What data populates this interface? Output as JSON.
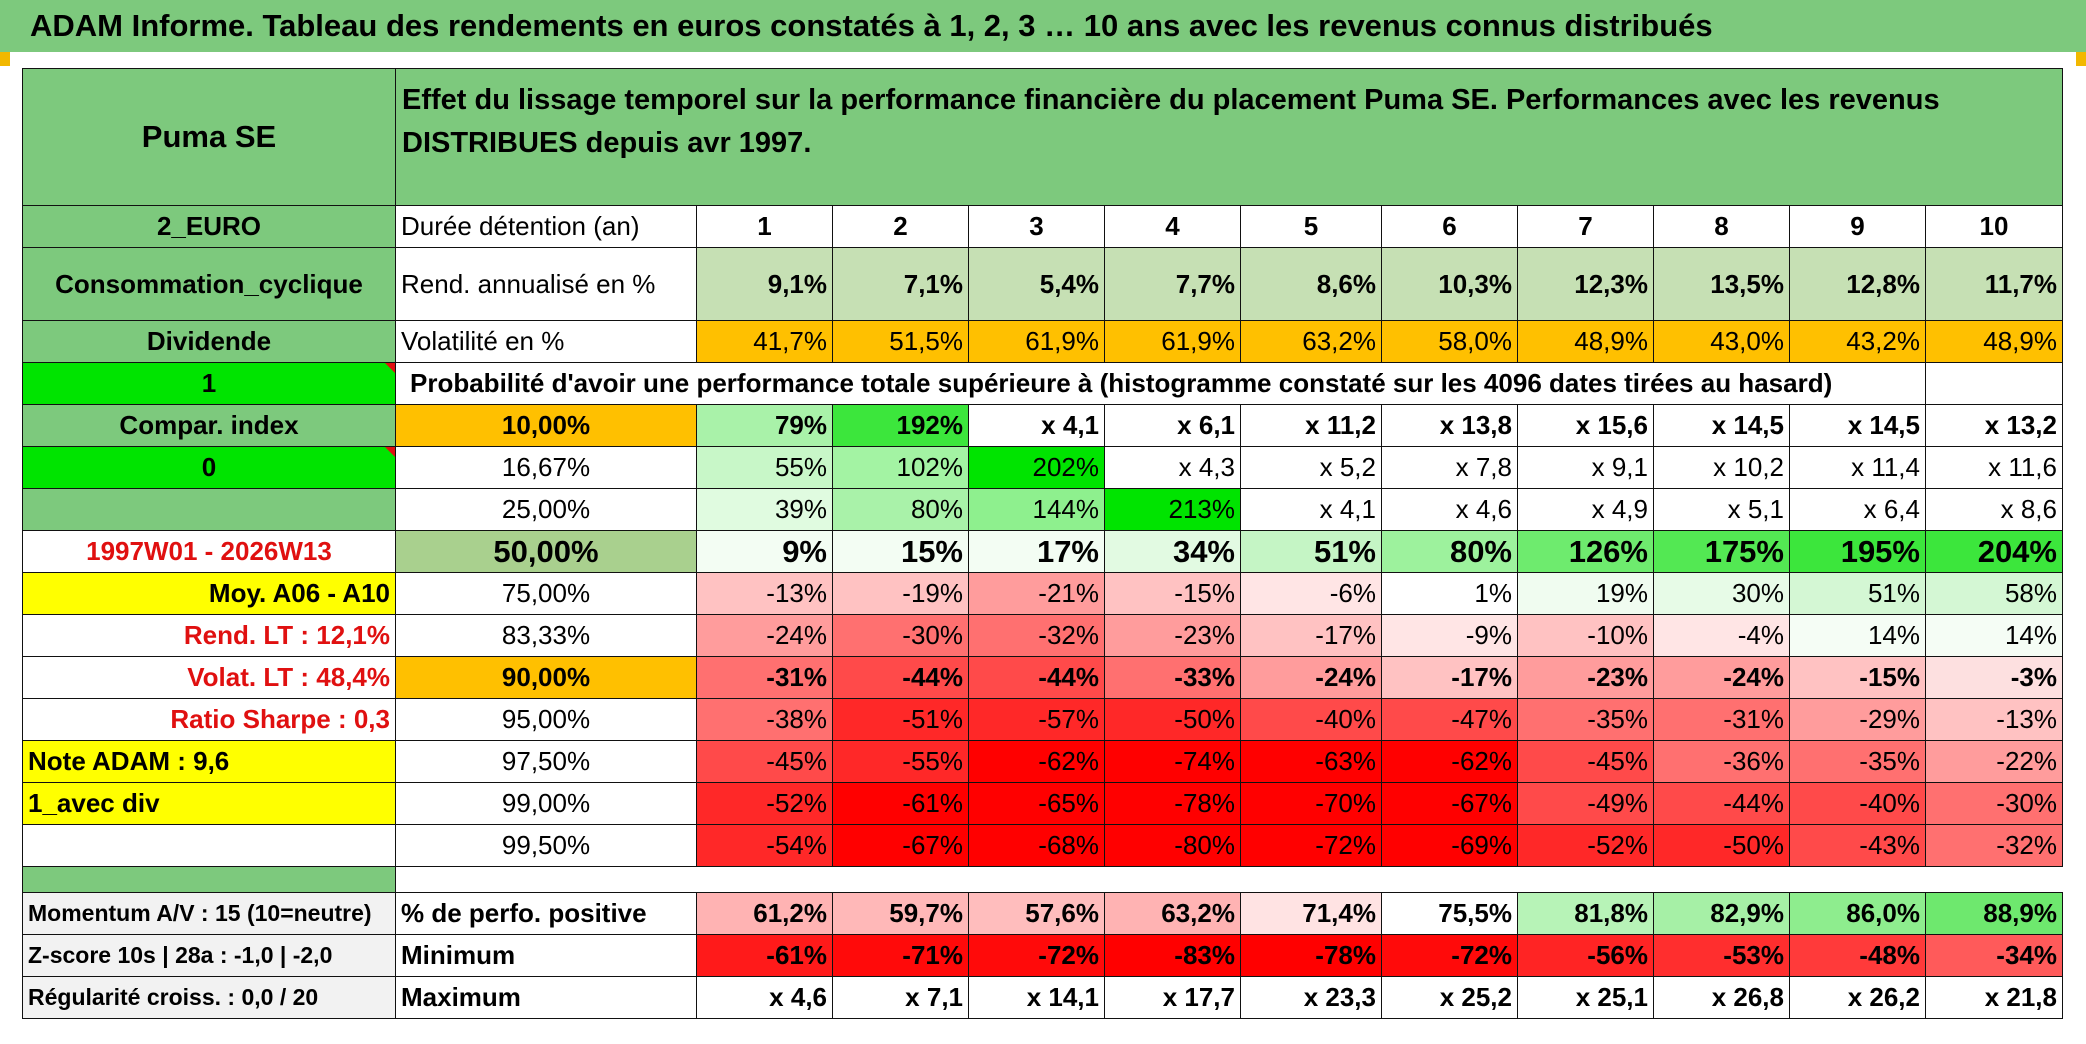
{
  "title": "ADAM Informe. Tableau des rendements en euros constatés à 1, 2, 3 … 10 ans avec les revenus connus distribués",
  "left_labels": {
    "company": "Puma SE",
    "currency": "2_EURO",
    "sector": "Consommation_cyclique",
    "dividend": "Dividende",
    "dividend_val": "1",
    "compar_index": "Compar. index",
    "compar_val": "0",
    "period": "1997W01 - 2026W13",
    "moy": "Moy. A06 - A10",
    "rend_lt": "Rend. LT :    12,1%",
    "volat_lt": "Volat. LT :    48,4%",
    "sharpe": "Ratio Sharpe :    0,3",
    "note": "Note ADAM : 9,6",
    "avec_div": "1_avec div",
    "momentum": "Momentum A/V : 15 (10=neutre)",
    "zscore": "Z-score 10s | 28a : -1,0 | -2,0",
    "regularite": "Régularité croiss. : 0,0 / 20"
  },
  "header": "Effet du lissage temporel sur la performance financière du placement Puma SE. Performances avec les revenus DISTRIBUES depuis avr 1997.",
  "duration_label": "Durée détention (an)",
  "years": [
    "1",
    "2",
    "3",
    "4",
    "5",
    "6",
    "7",
    "8",
    "9",
    "10"
  ],
  "rend_label": "Rend. annualisé en %",
  "rend": [
    "9,1%",
    "7,1%",
    "5,4%",
    "7,7%",
    "8,6%",
    "10,3%",
    "12,3%",
    "13,5%",
    "12,8%",
    "11,7%"
  ],
  "vol_label": "Volatilité en %",
  "vol": [
    "41,7%",
    "51,5%",
    "61,9%",
    "61,9%",
    "63,2%",
    "58,0%",
    "48,9%",
    "43,0%",
    "43,2%",
    "48,9%"
  ],
  "prob_label": "Probabilité d'avoir une performance totale supérieure à (histogramme constaté sur les 4096 dates tirées au hasard)",
  "quantiles": [
    {
      "p": "10,00%",
      "values": [
        "79%",
        "192%",
        "x 4,1",
        "x 6,1",
        "x 11,2",
        "x 13,8",
        "x 15,6",
        "x 14,5",
        "x 14,5",
        "x 13,2"
      ]
    },
    {
      "p": "16,67%",
      "values": [
        "55%",
        "102%",
        "202%",
        "x 4,3",
        "x 5,2",
        "x 7,8",
        "x 9,1",
        "x 10,2",
        "x 11,4",
        "x 11,6"
      ]
    },
    {
      "p": "25,00%",
      "values": [
        "39%",
        "80%",
        "144%",
        "213%",
        "x 4,1",
        "x 4,6",
        "x 4,9",
        "x 5,1",
        "x 6,4",
        "x 8,6"
      ]
    },
    {
      "p": "50,00%",
      "values": [
        "9%",
        "15%",
        "17%",
        "34%",
        "51%",
        "80%",
        "126%",
        "175%",
        "195%",
        "204%"
      ]
    },
    {
      "p": "75,00%",
      "values": [
        "-13%",
        "-19%",
        "-21%",
        "-15%",
        "-6%",
        "1%",
        "19%",
        "30%",
        "51%",
        "58%"
      ]
    },
    {
      "p": "83,33%",
      "values": [
        "-24%",
        "-30%",
        "-32%",
        "-23%",
        "-17%",
        "-9%",
        "-10%",
        "-4%",
        "14%",
        "14%"
      ]
    },
    {
      "p": "90,00%",
      "values": [
        "-31%",
        "-44%",
        "-44%",
        "-33%",
        "-24%",
        "-17%",
        "-23%",
        "-24%",
        "-15%",
        "-3%"
      ]
    },
    {
      "p": "95,00%",
      "values": [
        "-38%",
        "-51%",
        "-57%",
        "-50%",
        "-40%",
        "-47%",
        "-35%",
        "-31%",
        "-29%",
        "-13%"
      ]
    },
    {
      "p": "97,50%",
      "values": [
        "-45%",
        "-55%",
        "-62%",
        "-74%",
        "-63%",
        "-62%",
        "-45%",
        "-36%",
        "-35%",
        "-22%"
      ]
    },
    {
      "p": "99,00%",
      "values": [
        "-52%",
        "-61%",
        "-65%",
        "-78%",
        "-70%",
        "-67%",
        "-49%",
        "-44%",
        "-40%",
        "-30%"
      ]
    },
    {
      "p": "99,50%",
      "values": [
        "-54%",
        "-67%",
        "-68%",
        "-80%",
        "-72%",
        "-69%",
        "-52%",
        "-50%",
        "-43%",
        "-32%"
      ]
    }
  ],
  "pos_label": "% de perfo. positive",
  "pos": [
    "61,2%",
    "59,7%",
    "57,6%",
    "63,2%",
    "71,4%",
    "75,5%",
    "81,8%",
    "82,9%",
    "86,0%",
    "88,9%"
  ],
  "min_label": "Minimum",
  "min": [
    "-61%",
    "-71%",
    "-72%",
    "-83%",
    "-78%",
    "-72%",
    "-56%",
    "-53%",
    "-48%",
    "-34%"
  ],
  "max_label": "Maximum",
  "max": [
    "x 4,6",
    "x 7,1",
    "x 14,1",
    "x 17,7",
    "x 23,3",
    "x 25,2",
    "x 25,1",
    "x 26,8",
    "x 26,2",
    "x 21,8"
  ],
  "colors": {
    "header_green": "#7dc97d",
    "bright_green": "#00e400",
    "yellow": "#ffff00",
    "orange": "#ffc000",
    "red_text": "#e01010"
  }
}
